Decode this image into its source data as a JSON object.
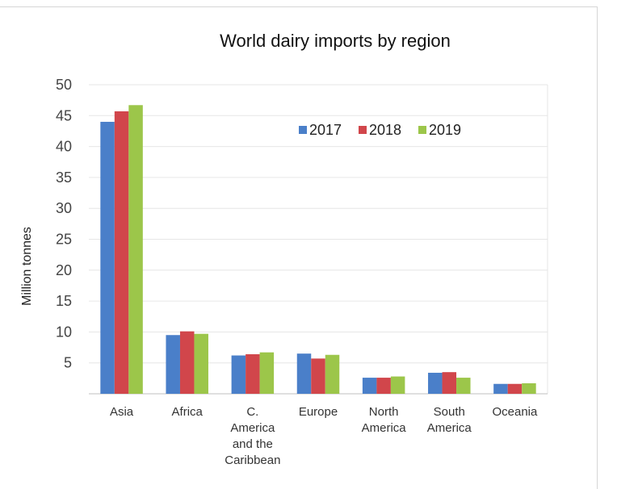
{
  "chart_data": {
    "type": "bar",
    "title": "World dairy imports by region",
    "ylabel": "Million tonnes",
    "xlabel": "",
    "categories": [
      "Asia",
      "Africa",
      "C. America and the Caribbean",
      "Europe",
      "North America",
      "South America",
      "Oceania"
    ],
    "category_lines": [
      [
        "Asia"
      ],
      [
        "Africa"
      ],
      [
        "C.",
        "America",
        "and the",
        "Caribbean"
      ],
      [
        "Europe"
      ],
      [
        "North",
        "America"
      ],
      [
        "South",
        "America"
      ],
      [
        "Oceania"
      ]
    ],
    "series": [
      {
        "name": "2017",
        "color": "#4a7fc9",
        "values": [
          44,
          9.5,
          6.2,
          6.5,
          2.6,
          3.4,
          1.6
        ]
      },
      {
        "name": "2018",
        "color": "#d1464b",
        "values": [
          45.7,
          10.1,
          6.4,
          5.7,
          2.6,
          3.5,
          1.6
        ]
      },
      {
        "name": "2019",
        "color": "#9cc64a",
        "values": [
          46.7,
          9.7,
          6.7,
          6.3,
          2.8,
          2.6,
          1.7
        ]
      }
    ],
    "yticks": [
      5,
      10,
      15,
      20,
      25,
      30,
      35,
      40,
      45,
      50
    ],
    "ylim": [
      0,
      50
    ],
    "grid": true,
    "legend": "top-center"
  }
}
